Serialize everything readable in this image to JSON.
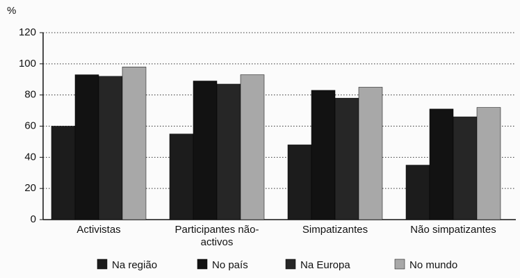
{
  "chart_data": {
    "type": "bar",
    "ylabel": "%",
    "categories": [
      "Activistas",
      "Participantes não-activos",
      "Simpatizantes",
      "Não simpatizantes"
    ],
    "series": [
      {
        "name": "Na região",
        "color": "#1c1c1c",
        "values": [
          60,
          55,
          48,
          35
        ]
      },
      {
        "name": "No país",
        "color": "#121212",
        "values": [
          93,
          89,
          83,
          71
        ]
      },
      {
        "name": "Na Europa",
        "color": "#262626",
        "values": [
          92,
          87,
          78,
          66
        ]
      },
      {
        "name": "No mundo",
        "color": "#a8a8a8",
        "values": [
          98,
          93,
          85,
          72
        ]
      }
    ],
    "ylim": [
      0,
      120
    ],
    "yticks": [
      0,
      20,
      40,
      60,
      80,
      100,
      120
    ],
    "grid": true
  }
}
